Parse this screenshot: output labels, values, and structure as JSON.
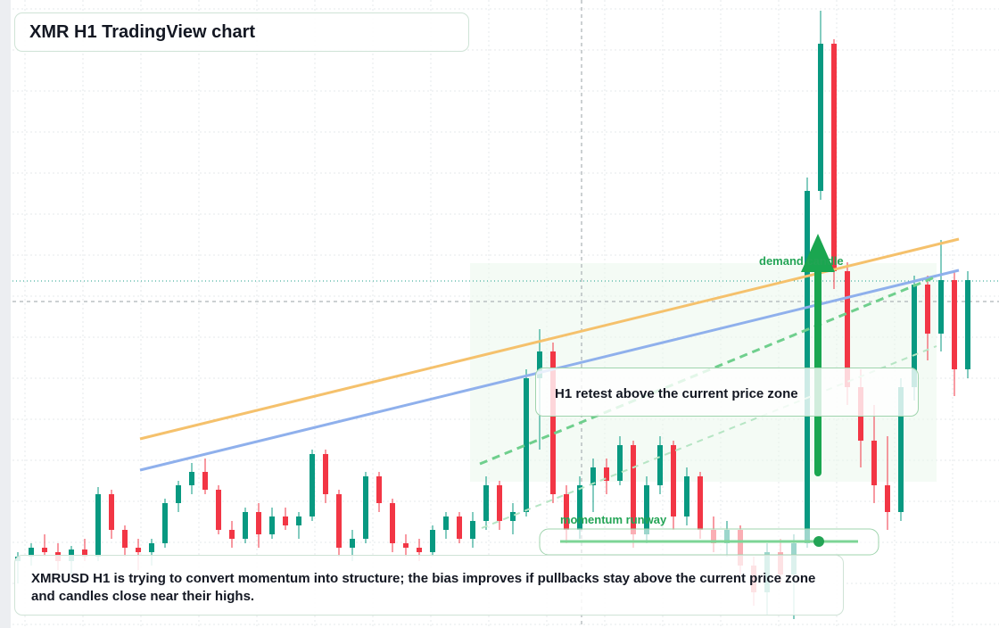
{
  "chart_data": {
    "type": "candlestick",
    "title": "XMR H1 TradingView chart",
    "up_color": "#089981",
    "down_color": "#f23645",
    "ylim": [
      0,
      704
    ],
    "open": [
      75,
      80,
      90,
      85,
      75,
      88,
      80,
      150,
      110,
      90,
      85,
      95,
      140,
      160,
      175,
      155,
      110,
      100,
      130,
      105,
      125,
      115,
      125,
      195,
      150,
      90,
      100,
      170,
      140,
      95,
      90,
      85,
      110,
      125,
      100,
      120,
      160,
      120,
      130,
      280,
      310,
      150,
      110,
      160,
      180,
      165,
      205,
      105,
      160,
      205,
      125,
      170,
      110,
      95,
      110,
      70,
      40,
      85,
      60,
      95,
      490,
      655,
      400,
      270,
      210,
      160,
      130,
      270,
      385,
      330,
      390,
      290
    ],
    "high": [
      85,
      95,
      105,
      95,
      92,
      100,
      158,
      155,
      115,
      100,
      100,
      145,
      165,
      185,
      190,
      160,
      120,
      135,
      140,
      135,
      135,
      130,
      200,
      200,
      155,
      110,
      175,
      175,
      145,
      105,
      100,
      115,
      130,
      130,
      130,
      170,
      165,
      140,
      290,
      335,
      320,
      160,
      170,
      190,
      190,
      215,
      210,
      170,
      215,
      210,
      180,
      175,
      125,
      120,
      115,
      80,
      95,
      100,
      105,
      505,
      692,
      660,
      410,
      290,
      250,
      215,
      280,
      395,
      395,
      435,
      400,
      400
    ],
    "low": [
      50,
      70,
      80,
      65,
      60,
      75,
      75,
      100,
      80,
      65,
      70,
      90,
      130,
      150,
      150,
      105,
      90,
      95,
      90,
      100,
      110,
      100,
      120,
      140,
      80,
      75,
      95,
      130,
      85,
      80,
      75,
      80,
      100,
      95,
      90,
      110,
      110,
      105,
      125,
      200,
      140,
      95,
      100,
      130,
      150,
      160,
      90,
      95,
      150,
      110,
      115,
      100,
      85,
      80,
      60,
      25,
      15,
      50,
      10,
      90,
      480,
      380,
      250,
      180,
      140,
      110,
      120,
      255,
      300,
      310,
      260,
      280
    ],
    "close": [
      80,
      90,
      85,
      75,
      88,
      80,
      150,
      110,
      90,
      85,
      95,
      140,
      160,
      175,
      155,
      110,
      100,
      130,
      105,
      125,
      115,
      125,
      195,
      150,
      90,
      100,
      170,
      140,
      95,
      90,
      85,
      110,
      125,
      100,
      120,
      160,
      120,
      130,
      280,
      310,
      150,
      110,
      160,
      180,
      165,
      205,
      105,
      160,
      205,
      125,
      170,
      110,
      95,
      110,
      70,
      40,
      85,
      60,
      95,
      490,
      655,
      400,
      270,
      210,
      160,
      130,
      270,
      385,
      330,
      390,
      290,
      390
    ],
    "annotations": {
      "summary": "XMRUSD H1 is trying to convert momentum into structure; the bias improves if pullbacks stay above the current price zone and candles close near their highs.",
      "retest": "H1 retest above the current price zone",
      "demand": "demand candle",
      "momentum": "momentum runway"
    }
  }
}
